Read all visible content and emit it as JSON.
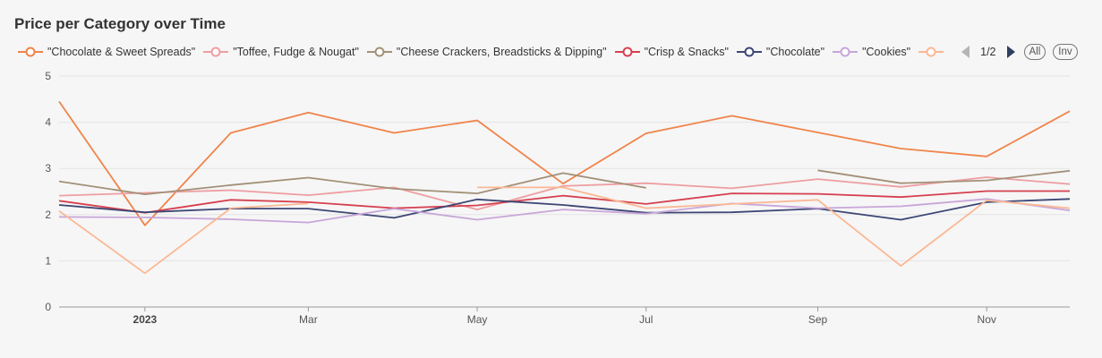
{
  "chart_data": {
    "type": "line",
    "title": "Price per Category over Time",
    "x": [
      "2022-12-01",
      "2023-01-01",
      "2023-02-01",
      "2023-03-01",
      "2023-04-01",
      "2023-05-01",
      "2023-06-01",
      "2023-07-01",
      "2023-08-01",
      "2023-09-01",
      "2023-10-01",
      "2023-11-01",
      "2023-12-01"
    ],
    "x_ticks": [
      {
        "date": "2023-01-01",
        "label": "2023",
        "bold": true
      },
      {
        "date": "2023-03-01",
        "label": "Mar",
        "bold": false
      },
      {
        "date": "2023-05-01",
        "label": "May",
        "bold": false
      },
      {
        "date": "2023-07-01",
        "label": "Jul",
        "bold": false
      },
      {
        "date": "2023-09-01",
        "label": "Sep",
        "bold": false
      },
      {
        "date": "2023-11-01",
        "label": "Nov",
        "bold": false
      }
    ],
    "x_range": [
      "2022-12-01",
      "2023-12-01"
    ],
    "ylim": [
      0,
      5
    ],
    "y_ticks": [
      0,
      1,
      2,
      3,
      4,
      5
    ],
    "grid": true,
    "legend_position": "top-left",
    "series": [
      {
        "name": "\"Chocolate & Sweet Spreads\"",
        "color": "#f0844a",
        "values": [
          4.45,
          1.77,
          3.77,
          4.21,
          3.77,
          4.04,
          2.67,
          3.76,
          4.14,
          3.78,
          3.43,
          3.26,
          4.24
        ]
      },
      {
        "name": "\"Toffee, Fudge & Nougat\"",
        "color": "#ee9ea2",
        "values": [
          2.41,
          2.47,
          2.53,
          2.42,
          2.59,
          2.11,
          2.62,
          2.68,
          2.57,
          2.77,
          2.6,
          2.81,
          2.66
        ]
      },
      {
        "name": "\"Cheese Crackers, Breadsticks & Dipping\"",
        "color": "#a39078",
        "values": [
          2.72,
          2.44,
          2.64,
          2.8,
          2.56,
          2.46,
          2.9,
          2.58,
          null,
          2.96,
          2.68,
          2.74,
          2.95
        ]
      },
      {
        "name": "\"Crisp & Snacks\"",
        "color": "#d6404f",
        "values": [
          2.3,
          2.04,
          2.32,
          2.27,
          2.14,
          2.2,
          2.41,
          2.23,
          2.46,
          2.45,
          2.38,
          2.51,
          2.51
        ]
      },
      {
        "name": "\"Chocolate\"",
        "color": "#3d4674",
        "values": [
          2.21,
          2.05,
          2.13,
          2.13,
          1.93,
          2.33,
          2.21,
          2.04,
          2.05,
          2.13,
          1.89,
          2.27,
          2.34
        ]
      },
      {
        "name": "\"Cookies\"",
        "color": "#c8a6d9",
        "values": [
          1.95,
          1.94,
          1.9,
          1.83,
          2.13,
          1.89,
          2.11,
          2.02,
          2.24,
          2.14,
          2.18,
          2.34,
          2.09
        ]
      },
      {
        "name": "",
        "color": "#fbb894",
        "values": [
          2.08,
          0.73,
          2.14,
          2.24,
          null,
          2.59,
          2.59,
          2.14,
          2.23,
          2.32,
          0.89,
          2.31,
          2.14
        ]
      }
    ]
  },
  "legend": {
    "items": [
      {
        "label": "\"Chocolate & Sweet Spreads\"",
        "color": "#f0844a"
      },
      {
        "label": "\"Toffee, Fudge & Nougat\"",
        "color": "#ee9ea2"
      },
      {
        "label": "\"Cheese Crackers, Breadsticks & Dipping\"",
        "color": "#a39078"
      },
      {
        "label": "\"Crisp & Snacks\"",
        "color": "#d6404f"
      },
      {
        "label": "\"Chocolate\"",
        "color": "#3d4674"
      },
      {
        "label": "\"Cookies\"",
        "color": "#c8a6d9"
      },
      {
        "label": "",
        "color": "#fbb894"
      }
    ],
    "page_text": "1/2",
    "all_label": "All",
    "inv_label": "Inv"
  }
}
